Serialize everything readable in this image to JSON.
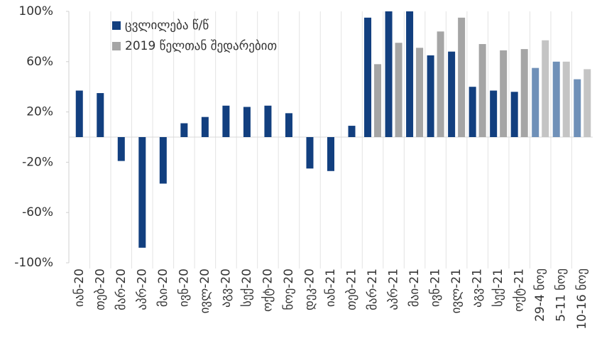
{
  "chart_data": {
    "type": "bar",
    "categories": [
      "იან-20",
      "თებ-20",
      "მარ-20",
      "აპრ-20",
      "მაი-20",
      "ივნ-20",
      "ივლ-20",
      "აგვ-20",
      "სექ-20",
      "ოქტ-20",
      "ნოე-20",
      "დეკ-20",
      "იან-21",
      "თებ-21",
      "მარ-21",
      "აპრ-21",
      "მაი-21",
      "ივნ-21",
      "ივლ-21",
      "აგვ-21",
      "სექ-21",
      "ოქტ-21",
      "29-4 ნოე",
      "5-11 ნოე",
      "10-16 ნოე"
    ],
    "series": [
      {
        "name": "ცვლილება წ/წ",
        "color": "#123f7f",
        "colors": [
          "#123f7f",
          "#123f7f",
          "#123f7f",
          "#123f7f",
          "#123f7f",
          "#123f7f",
          "#123f7f",
          "#123f7f",
          "#123f7f",
          "#123f7f",
          "#123f7f",
          "#123f7f",
          "#123f7f",
          "#123f7f",
          "#123f7f",
          "#123f7f",
          "#123f7f",
          "#123f7f",
          "#123f7f",
          "#123f7f",
          "#123f7f",
          "#123f7f",
          "#6f90b8",
          "#6f90b8",
          "#6f90b8"
        ],
        "values": [
          37,
          35,
          -19,
          -88,
          -37,
          11,
          16,
          25,
          24,
          25,
          19,
          -25,
          -27,
          9,
          95,
          100,
          100,
          65,
          68,
          40,
          37,
          36,
          55,
          60,
          46
        ]
      },
      {
        "name": "2019 წელთან შედარებით",
        "color": "#a5a5a5",
        "colors": [
          "#a5a5a5",
          "#a5a5a5",
          "#a5a5a5",
          "#a5a5a5",
          "#a5a5a5",
          "#a5a5a5",
          "#a5a5a5",
          "#a5a5a5",
          "#a5a5a5",
          "#a5a5a5",
          "#a5a5a5",
          "#a5a5a5",
          "#a5a5a5",
          "#a5a5a5",
          "#a5a5a5",
          "#a5a5a5",
          "#a5a5a5",
          "#a5a5a5",
          "#a5a5a5",
          "#a5a5a5",
          "#a5a5a5",
          "#a5a5a5",
          "#c4c4c4",
          "#c4c4c4",
          "#c4c4c4"
        ],
        "values": [
          null,
          null,
          null,
          null,
          null,
          null,
          null,
          null,
          null,
          null,
          null,
          null,
          null,
          null,
          58,
          75,
          71,
          84,
          95,
          74,
          69,
          70,
          77,
          60,
          54
        ]
      }
    ],
    "ylim": [
      -100,
      100
    ],
    "yticks": [
      {
        "value": -100,
        "label": "-100%"
      },
      {
        "value": -60,
        "label": "-60%"
      },
      {
        "value": -20,
        "label": "-20%"
      },
      {
        "value": 20,
        "label": "20%"
      },
      {
        "value": 60,
        "label": "60%"
      },
      {
        "value": 100,
        "label": "100%"
      }
    ],
    "legend": "upper left"
  }
}
